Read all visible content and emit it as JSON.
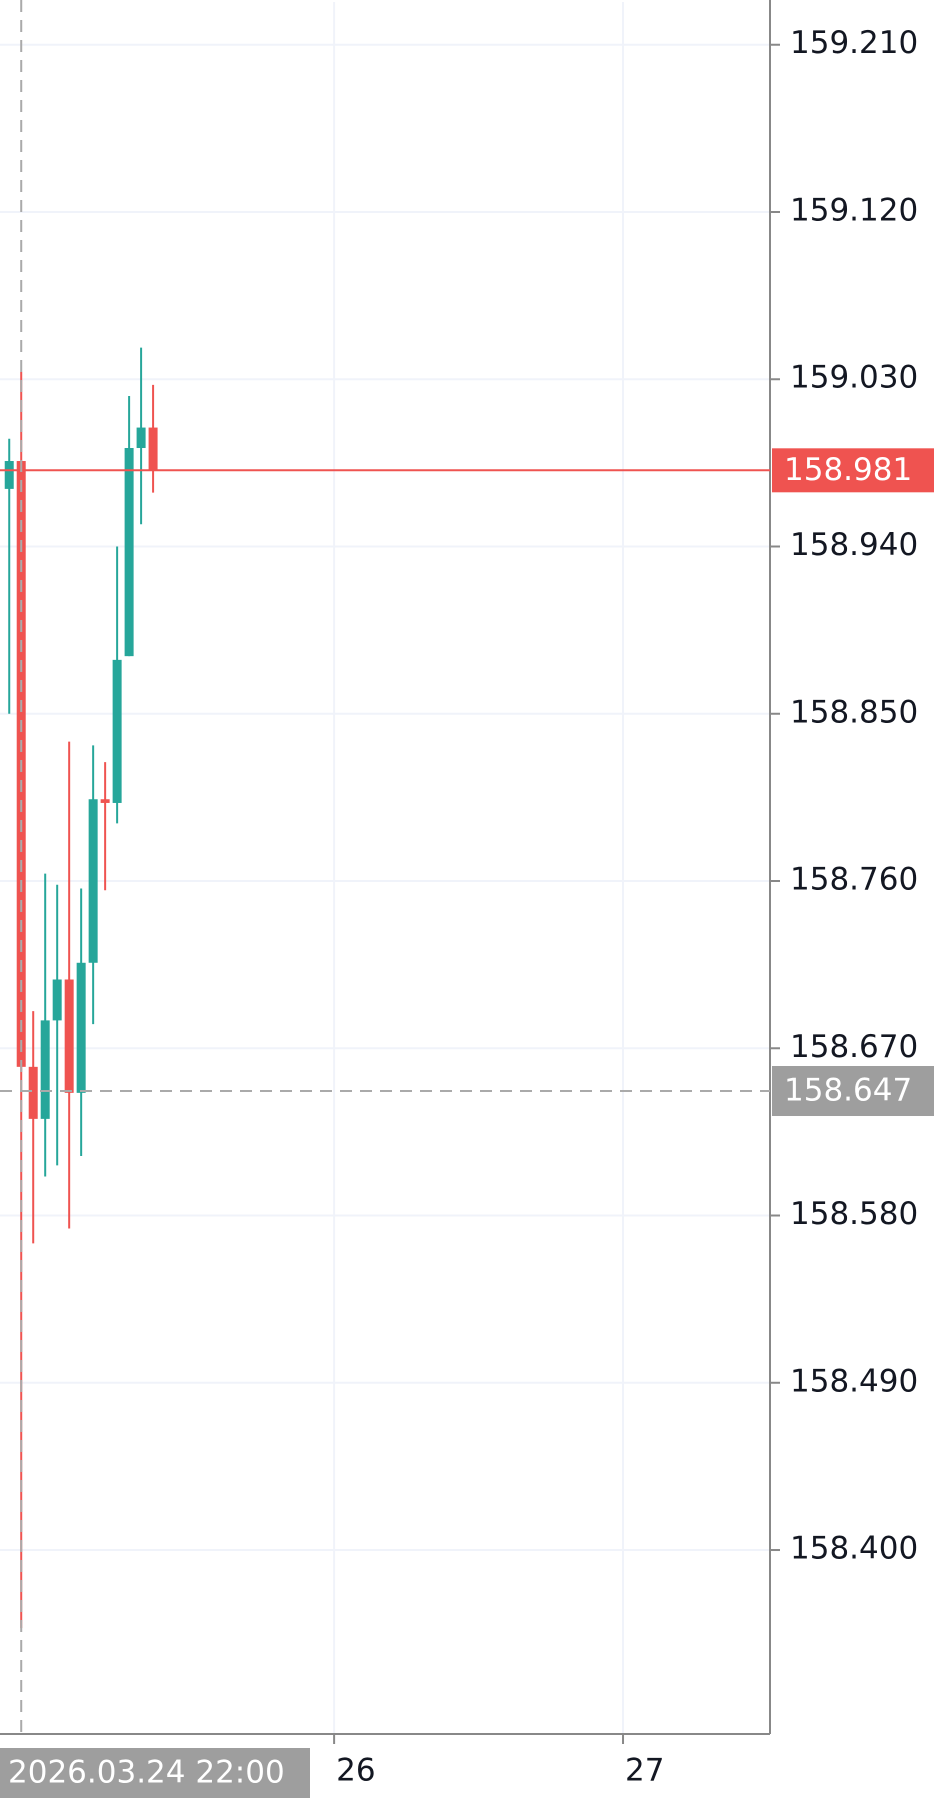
{
  "chart_data": {
    "type": "candlestick",
    "open": [
      158.971,
      158.986,
      158.66,
      158.632,
      158.685,
      158.707,
      158.646,
      158.716,
      158.804,
      158.802,
      158.881,
      158.993,
      159.004
    ],
    "high": [
      158.998,
      159.034,
      158.69,
      158.764,
      158.758,
      158.835,
      158.756,
      158.833,
      158.824,
      158.94,
      159.021,
      159.047,
      159.027
    ],
    "low": [
      158.85,
      158.358,
      158.565,
      158.601,
      158.607,
      158.573,
      158.612,
      158.683,
      158.755,
      158.791,
      158.881,
      158.952,
      158.969
    ],
    "close": [
      158.986,
      158.66,
      158.632,
      158.685,
      158.707,
      158.646,
      158.716,
      158.804,
      158.802,
      158.879,
      158.993,
      159.004,
      158.981
    ],
    "up_color": "#26a69a",
    "down_color": "#ef5350",
    "ylim": [
      158.301,
      159.233
    ],
    "yticks": [
      {
        "value": 159.21,
        "label": "159.210"
      },
      {
        "value": 159.12,
        "label": "159.120"
      },
      {
        "value": 159.03,
        "label": "159.030"
      },
      {
        "value": 158.94,
        "label": "158.940"
      },
      {
        "value": 158.85,
        "label": "158.850"
      },
      {
        "value": 158.76,
        "label": "158.760"
      },
      {
        "value": 158.67,
        "label": "158.670"
      },
      {
        "value": 158.58,
        "label": "158.580"
      },
      {
        "value": 158.49,
        "label": "158.490"
      },
      {
        "value": 158.4,
        "label": "158.400"
      }
    ],
    "xlim": [
      -0.77,
      63.46
    ],
    "xticks": [
      {
        "value": 27.1,
        "label": "26"
      },
      {
        "value": 51.2,
        "label": "27"
      }
    ],
    "grid": true,
    "last_price": 158.981,
    "last_price_color": "#ef5350",
    "crosshair": {
      "x": 1,
      "x_label": "2026.03.24 22:00",
      "y": 158.647
    }
  }
}
